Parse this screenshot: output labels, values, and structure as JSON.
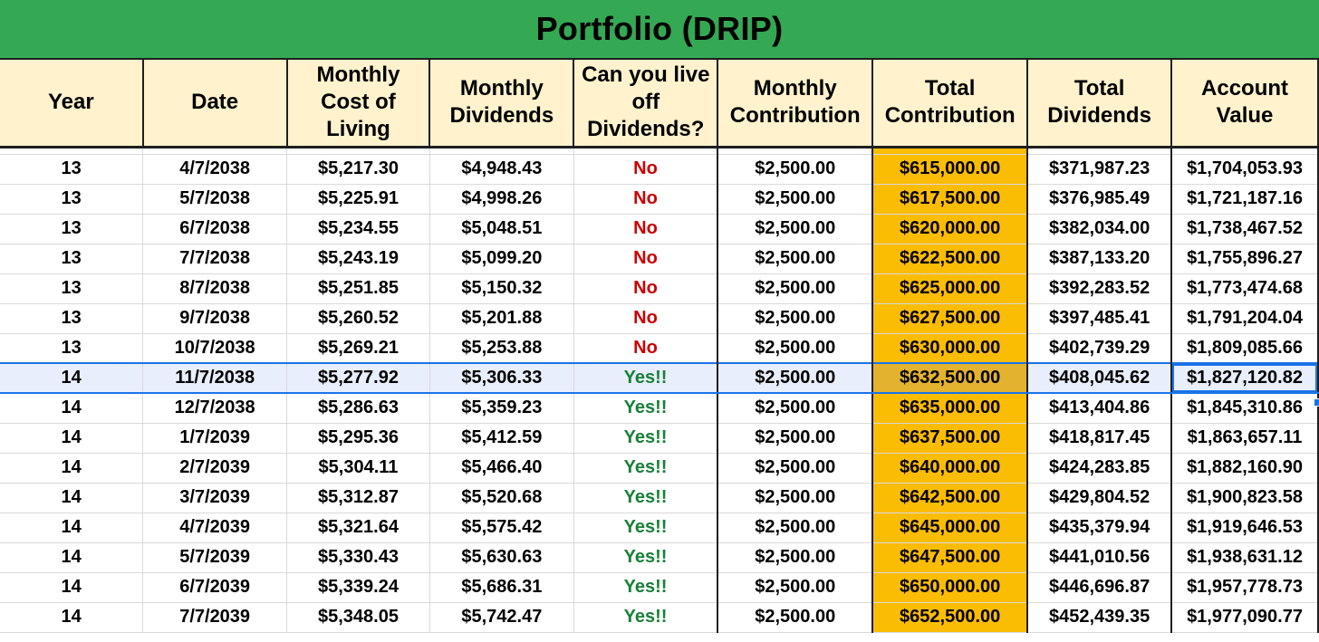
{
  "title": "Portfolio (DRIP)",
  "headers": [
    "Year",
    "Date",
    "Monthly Cost of Living",
    "Monthly Dividends",
    "Can you live off Dividends?",
    "Monthly Contribution",
    "Total Contribution",
    "Total Dividends",
    "Account Value"
  ],
  "colors": {
    "title_bar": "#34a853",
    "header_fill": "#fff2cc",
    "highlight_column": "#fbbc04",
    "no_text": "#cc0000",
    "yes_text": "#188038",
    "selection": "#1a73e8"
  },
  "selected_row_index": 7,
  "rows": [
    [
      "13",
      "4/7/2038",
      "$5,217.30",
      "$4,948.43",
      "No",
      "$2,500.00",
      "$615,000.00",
      "$371,987.23",
      "$1,704,053.93"
    ],
    [
      "13",
      "5/7/2038",
      "$5,225.91",
      "$4,998.26",
      "No",
      "$2,500.00",
      "$617,500.00",
      "$376,985.49",
      "$1,721,187.16"
    ],
    [
      "13",
      "6/7/2038",
      "$5,234.55",
      "$5,048.51",
      "No",
      "$2,500.00",
      "$620,000.00",
      "$382,034.00",
      "$1,738,467.52"
    ],
    [
      "13",
      "7/7/2038",
      "$5,243.19",
      "$5,099.20",
      "No",
      "$2,500.00",
      "$622,500.00",
      "$387,133.20",
      "$1,755,896.27"
    ],
    [
      "13",
      "8/7/2038",
      "$5,251.85",
      "$5,150.32",
      "No",
      "$2,500.00",
      "$625,000.00",
      "$392,283.52",
      "$1,773,474.68"
    ],
    [
      "13",
      "9/7/2038",
      "$5,260.52",
      "$5,201.88",
      "No",
      "$2,500.00",
      "$627,500.00",
      "$397,485.41",
      "$1,791,204.04"
    ],
    [
      "13",
      "10/7/2038",
      "$5,269.21",
      "$5,253.88",
      "No",
      "$2,500.00",
      "$630,000.00",
      "$402,739.29",
      "$1,809,085.66"
    ],
    [
      "14",
      "11/7/2038",
      "$5,277.92",
      "$5,306.33",
      "Yes!!",
      "$2,500.00",
      "$632,500.00",
      "$408,045.62",
      "$1,827,120.82"
    ],
    [
      "14",
      "12/7/2038",
      "$5,286.63",
      "$5,359.23",
      "Yes!!",
      "$2,500.00",
      "$635,000.00",
      "$413,404.86",
      "$1,845,310.86"
    ],
    [
      "14",
      "1/7/2039",
      "$5,295.36",
      "$5,412.59",
      "Yes!!",
      "$2,500.00",
      "$637,500.00",
      "$418,817.45",
      "$1,863,657.11"
    ],
    [
      "14",
      "2/7/2039",
      "$5,304.11",
      "$5,466.40",
      "Yes!!",
      "$2,500.00",
      "$640,000.00",
      "$424,283.85",
      "$1,882,160.90"
    ],
    [
      "14",
      "3/7/2039",
      "$5,312.87",
      "$5,520.68",
      "Yes!!",
      "$2,500.00",
      "$642,500.00",
      "$429,804.52",
      "$1,900,823.58"
    ],
    [
      "14",
      "4/7/2039",
      "$5,321.64",
      "$5,575.42",
      "Yes!!",
      "$2,500.00",
      "$645,000.00",
      "$435,379.94",
      "$1,919,646.53"
    ],
    [
      "14",
      "5/7/2039",
      "$5,330.43",
      "$5,630.63",
      "Yes!!",
      "$2,500.00",
      "$647,500.00",
      "$441,010.56",
      "$1,938,631.12"
    ],
    [
      "14",
      "6/7/2039",
      "$5,339.24",
      "$5,686.31",
      "Yes!!",
      "$2,500.00",
      "$650,000.00",
      "$446,696.87",
      "$1,957,778.73"
    ],
    [
      "14",
      "7/7/2039",
      "$5,348.05",
      "$5,742.47",
      "Yes!!",
      "$2,500.00",
      "$652,500.00",
      "$452,439.35",
      "$1,977,090.77"
    ]
  ]
}
